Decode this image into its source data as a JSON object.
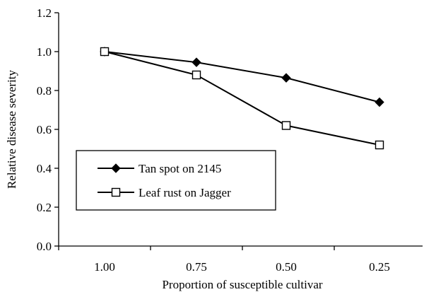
{
  "chart_data": {
    "type": "line",
    "x": [
      "1.00",
      "0.75",
      "0.50",
      "0.25"
    ],
    "series": [
      {
        "name": "Tan spot on 2145",
        "values": [
          1.0,
          0.945,
          0.865,
          0.74
        ],
        "marker": "filled-diamond",
        "color": "#000000"
      },
      {
        "name": "Leaf rust on Jagger",
        "values": [
          1.0,
          0.88,
          0.62,
          0.52
        ],
        "marker": "open-square",
        "color": "#000000"
      }
    ],
    "xlabel": "Proportion of susceptible cultivar",
    "ylabel": "Relative disease severity",
    "ylim": [
      0.0,
      1.2
    ],
    "yticks": [
      "0.0",
      "0.2",
      "0.4",
      "0.6",
      "0.8",
      "1.0",
      "1.2"
    ],
    "grid": false,
    "legend_position": "bottom-left, inside plot"
  }
}
